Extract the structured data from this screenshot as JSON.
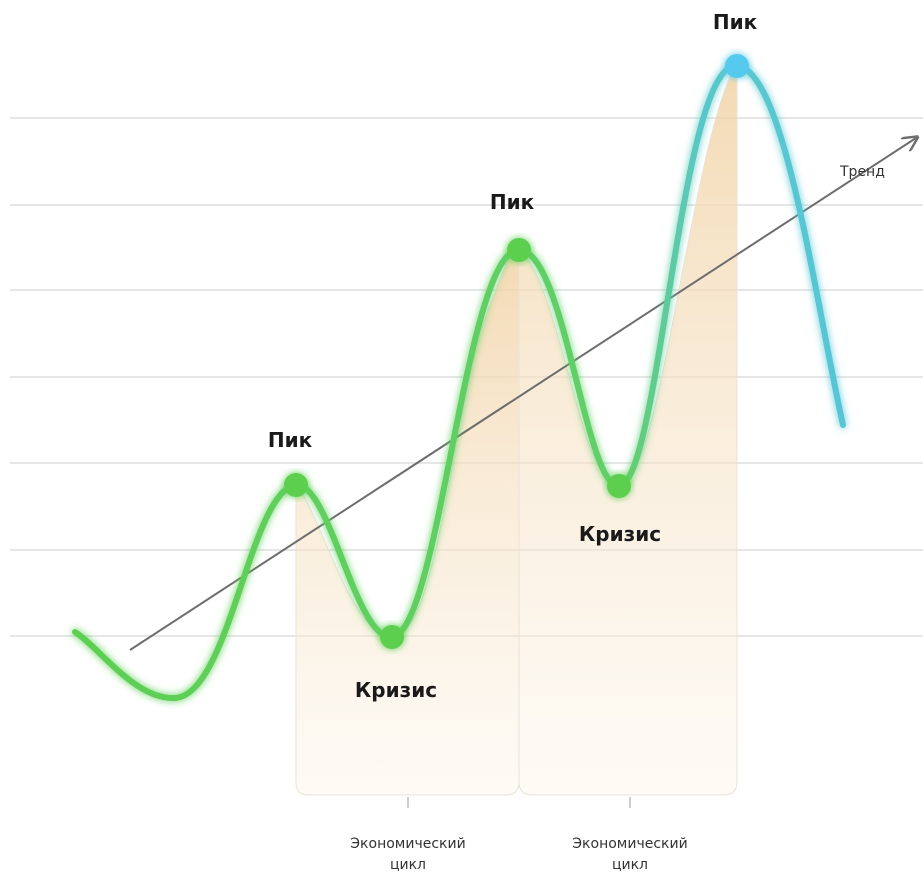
{
  "labels": {
    "peak_1": "Пик",
    "peak_2": "Пик",
    "peak_3": "Пик",
    "crisis_1": "Кризис",
    "crisis_2": "Кризис",
    "trend": "Тренд",
    "cycle_1_line1": "Экономический",
    "cycle_1_line2": "цикл",
    "cycle_2_line1": "Экономический",
    "cycle_2_line2": "цикл"
  },
  "colors": {
    "curve_green": "#5ccf4f",
    "curve_blue": "#58c6df",
    "peak_blue": "#56c9ee",
    "marker_green": "#5ccf4f",
    "band_fill": "#f3dcb8",
    "gridline": "#e8e8e8",
    "trend_line": "#6d6d6d",
    "text": "#1a1a1a"
  }
}
